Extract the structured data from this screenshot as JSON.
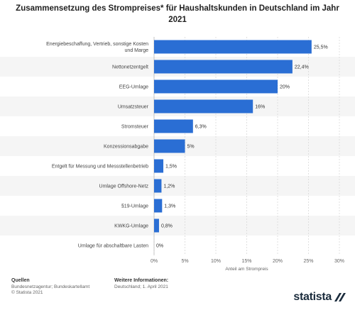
{
  "chart_data": {
    "type": "bar",
    "orientation": "horizontal",
    "title": "Zusammensetzung des Strompreises* für Haushaltskunden in Deutschland im Jahr 2021",
    "title_line1": "Zusammensetzung des Strompreises* für Haushaltskunden in Deutschland im Jahr",
    "title_line2": "2021",
    "categories": [
      [
        "Energiebeschaffung, Vertrieb, sonstige Kosten",
        "und Marge"
      ],
      [
        "Nettonetzentgelt"
      ],
      [
        "EEG-Umlage"
      ],
      [
        "Umsatzsteuer"
      ],
      [
        "Stromsteuer"
      ],
      [
        "Konzessionsabgabe"
      ],
      [
        "Entgelt für Messung und Messstellenbetrieb"
      ],
      [
        "Umlage Offshore-Netz"
      ],
      [
        "§19-Umlage"
      ],
      [
        "KWKG-Umlage"
      ],
      [
        "Umlage für abschaltbare Lasten"
      ]
    ],
    "values": [
      25.5,
      22.4,
      20,
      16,
      6.3,
      5,
      1.5,
      1.2,
      1.3,
      0.8,
      0
    ],
    "value_labels": [
      "25,5%",
      "22,4%",
      "20%",
      "16%",
      "6,3%",
      "5%",
      "1,5%",
      "1,2%",
      "1,3%",
      "0,8%",
      "0%"
    ],
    "xlim": [
      0,
      30
    ],
    "xticks": [
      0,
      5,
      10,
      15,
      20,
      25,
      30
    ],
    "xtick_labels": [
      "0%",
      "5%",
      "10%",
      "15%",
      "20%",
      "25%",
      "30%"
    ],
    "xlabel": "Anteil am Strompreis",
    "ylabel": "",
    "grid": true,
    "bar_color": "#2a6ed4",
    "stripe_color": "#f5f5f5"
  },
  "footer": {
    "sources_heading": "Quellen",
    "source_1": "Bundesnetzagentur; Bundeskartellamt",
    "source_2": "© Statista 2021",
    "info_heading": "Weitere Informationen:",
    "info_1": "Deutschland; 1. April 2021"
  },
  "logo": {
    "text": "statista",
    "color": "#1a2b3c"
  }
}
